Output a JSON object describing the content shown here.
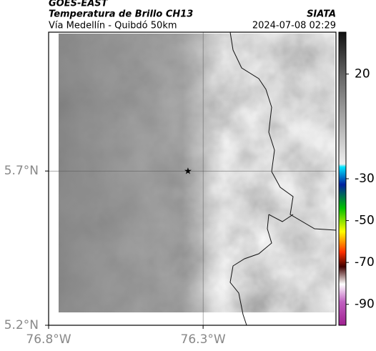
{
  "header": {
    "title": "GOES-EAST",
    "subtitle": "Temperatura de Brillo CH13",
    "place": "Vía Medellín - Quibdó 50km",
    "source": "SIATA",
    "timestamp": "2024-07-08 02:29"
  },
  "map": {
    "xlim": [
      -76.8,
      -75.87
    ],
    "ylim": [
      5.2,
      6.15
    ],
    "xticks": [
      {
        "value": -76.8,
        "label": "76.8°W"
      },
      {
        "value": -76.3,
        "label": "76.3°W"
      }
    ],
    "yticks": [
      {
        "value": 5.2,
        "label": "5.2°N"
      },
      {
        "value": 5.7,
        "label": "5.7°N"
      }
    ],
    "grid": true
  },
  "colorbar": {
    "lim": [
      -100,
      40
    ],
    "ticks": [
      20,
      -30,
      -50,
      -70,
      -90
    ]
  }
}
